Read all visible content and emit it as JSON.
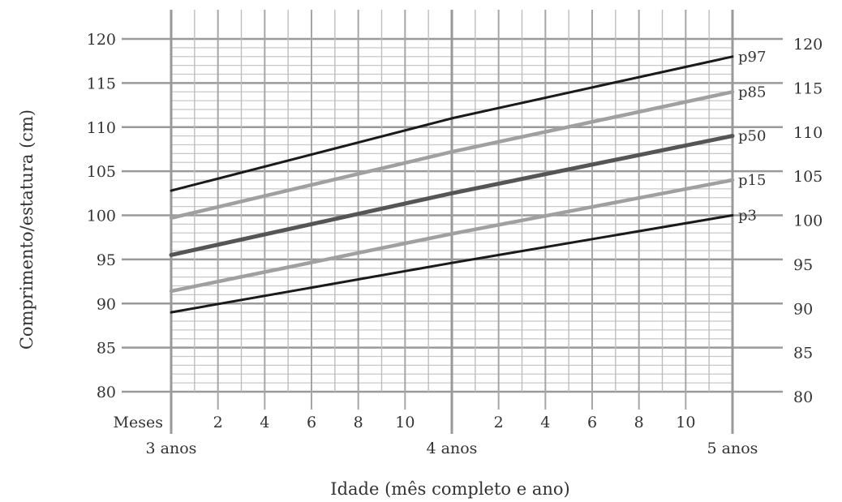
{
  "chart_data": {
    "type": "line",
    "xlabel": "Idade (mês completo e ano)",
    "ylabel": "Comprimento/estatura (cm)",
    "x_unit_label": "Meses",
    "x_month_ticks": [
      "2",
      "4",
      "6",
      "8",
      "10"
    ],
    "x_year_labels": [
      "3 anos",
      "4 anos",
      "5 anos"
    ],
    "xlim_months": [
      36,
      60
    ],
    "ylim": [
      80,
      120
    ],
    "y_ticks": [
      80,
      85,
      90,
      95,
      100,
      105,
      110,
      115,
      120
    ],
    "grid": true,
    "series": [
      {
        "name": "p3",
        "color": "#1a1a1a",
        "width": 3,
        "x_months": [
          36,
          48,
          60
        ],
        "y": [
          89.0,
          94.6,
          100.0
        ]
      },
      {
        "name": "p15",
        "color": "#a0a0a0",
        "width": 4.5,
        "x_months": [
          36,
          48,
          60
        ],
        "y": [
          91.4,
          97.9,
          104.0
        ]
      },
      {
        "name": "p50",
        "color": "#555555",
        "width": 5,
        "x_months": [
          36,
          48,
          60
        ],
        "y": [
          95.5,
          102.5,
          109.0
        ]
      },
      {
        "name": "p85",
        "color": "#a0a0a0",
        "width": 4.5,
        "x_months": [
          36,
          48,
          60
        ],
        "y": [
          99.7,
          107.2,
          114.0
        ]
      },
      {
        "name": "p97",
        "color": "#1a1a1a",
        "width": 3,
        "x_months": [
          36,
          48,
          60
        ],
        "y": [
          102.8,
          111.0,
          118.0
        ]
      }
    ]
  }
}
